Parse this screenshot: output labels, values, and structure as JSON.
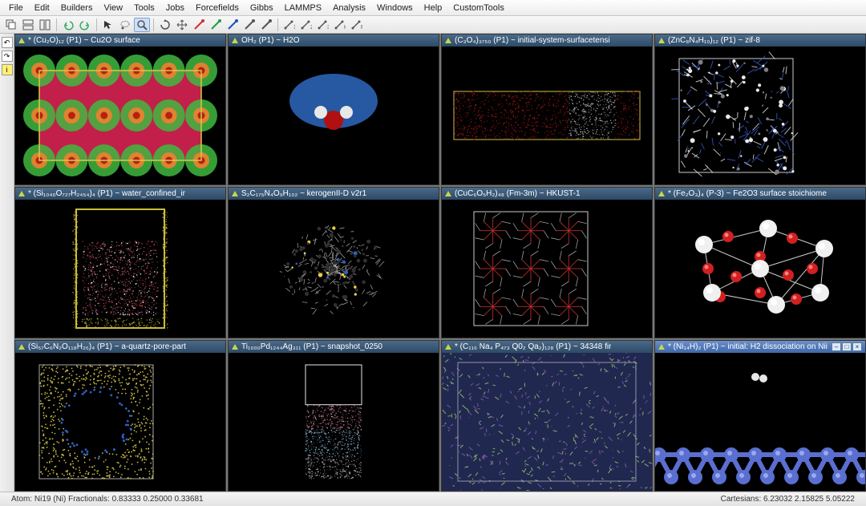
{
  "menu": [
    "File",
    "Edit",
    "Builders",
    "View",
    "Tools",
    "Jobs",
    "Forcefields",
    "Gibbs",
    "LAMMPS",
    "Analysis",
    "Windows",
    "Help",
    "CustomTools"
  ],
  "toolbar": {
    "groups": [
      [
        "cascade",
        "tile-h",
        "tile-v"
      ],
      [
        "undo",
        "redo"
      ],
      [
        "select",
        "lasso",
        "zoom"
      ],
      [
        "rot",
        "pan",
        "axis-x",
        "axis-y",
        "axis-z",
        "axis-a",
        "axis-b"
      ],
      [
        "bond1",
        "bond2",
        "bond3",
        "bondH",
        "bondR"
      ]
    ],
    "active": "zoom",
    "colors": {
      "axis-x": "#d03030",
      "axis-y": "#20a040",
      "axis-z": "#2050c0"
    }
  },
  "leftstrip": [
    {
      "name": "undo-icon",
      "glyph": "↶"
    },
    {
      "name": "redo-icon",
      "glyph": "↷"
    },
    {
      "name": "info-icon",
      "glyph": "i",
      "bg": "#fff070"
    }
  ],
  "panes": [
    {
      "title": "* (Cu₂O)₁₂  (P1) ~ Cu2O surface",
      "viz": "cu2o"
    },
    {
      "title": "OH₂  (P1) ~ H2O",
      "viz": "h2o"
    },
    {
      "title": "(C₃O₄)₃₇₅₀  (P1) ~ initial-system-surfacetensi",
      "viz": "surfacetension"
    },
    {
      "title": "(ZnC₈N₄H₁₀)₁₂  (P1) ~ zif-8",
      "viz": "zif8"
    },
    {
      "title": "* (Si₁₀₄₀O₇₂₇H₂₄₅₄)₄  (P1) ~ water_confined_ir",
      "viz": "waterconfined"
    },
    {
      "title": "S₂C₁₇₅N₄O₉H₁₀₂ ~ kerogenII-D v2r1",
      "viz": "kerogen"
    },
    {
      "title": "(CuC₆O₅H₂)₄₈  (Fm-3m) ~ HKUST-1",
      "viz": "hkust"
    },
    {
      "title": "* (Fe₂O₃)₄  (P-3) ~ Fe2O3 surface stoichiome",
      "viz": "fe2o3"
    },
    {
      "title": "(Si₅₇C₆N₂O₁₁₈H₂₆)₄  (P1) ~ a-quartz-pore-part",
      "viz": "quartzpore"
    },
    {
      "title": "Ti₁₀₀₀Pd₁₂₄₄Ag₃₁₁  (P1) ~ snapshot_0250",
      "viz": "snapshot"
    },
    {
      "title": "* (C₁₁₆ Na₄ P₄₇₃ Q0₂ Qa₂)₁₂₈  (P1) ~ 34348 fir",
      "viz": "fir"
    },
    {
      "title": "* (Ni₁₄H)₂  (P1) ~ initial: H2 dissociation on Nii",
      "viz": "ni",
      "active": true,
      "ctrls": true
    }
  ],
  "status": {
    "left": "Atom: Ni19 (Ni) Fractionals: 0.83333 0.25000 0.33681",
    "right": "Cartesians: 6.23032 2.15825 5.05222"
  },
  "viz": {
    "cu2o": {
      "bg": "#c21f4a",
      "atoms_red": "#b52210",
      "green": "#3fb83f",
      "orange": "#f08030",
      "box": "#d6c84a"
    },
    "h2o": {
      "blob": "#2a5fb0",
      "o": "#b01010",
      "h": "#e8e8e8"
    },
    "surfacetension": {
      "red": "#a01818",
      "grey": "#b0b0b0",
      "box": "#cfc24a"
    },
    "zif8": {
      "blue": "#3a5fd0",
      "white": "#e8e8e8",
      "grey": "#808080"
    },
    "waterconfined": {
      "frame": "#c9bd3a",
      "fill_noise": "#c04050"
    },
    "kerogen": {
      "grey": "#b8b8b8",
      "dark": "#303030",
      "yellow": "#e8d040",
      "blue": "#3060c0"
    },
    "hkust": {
      "white": "#e0e0e0",
      "red": "#c03030"
    },
    "fe2o3": {
      "white": "#f0f0f0",
      "red": "#d02020",
      "line": "#cccccc"
    },
    "quartzpore": {
      "dots": "#d8c84a",
      "inner": "#3060c0"
    },
    "snapshot": {
      "box": "#e8e8e8",
      "pink": "#d890a0",
      "blue": "#8db8d8",
      "grey": "#b0b0b0"
    },
    "fir": {
      "green": "#a0d070",
      "purple": "#9060b0",
      "navy": "#202850"
    },
    "ni": {
      "blue": "#5a6fd0",
      "ball": "#e8e8e8"
    }
  }
}
